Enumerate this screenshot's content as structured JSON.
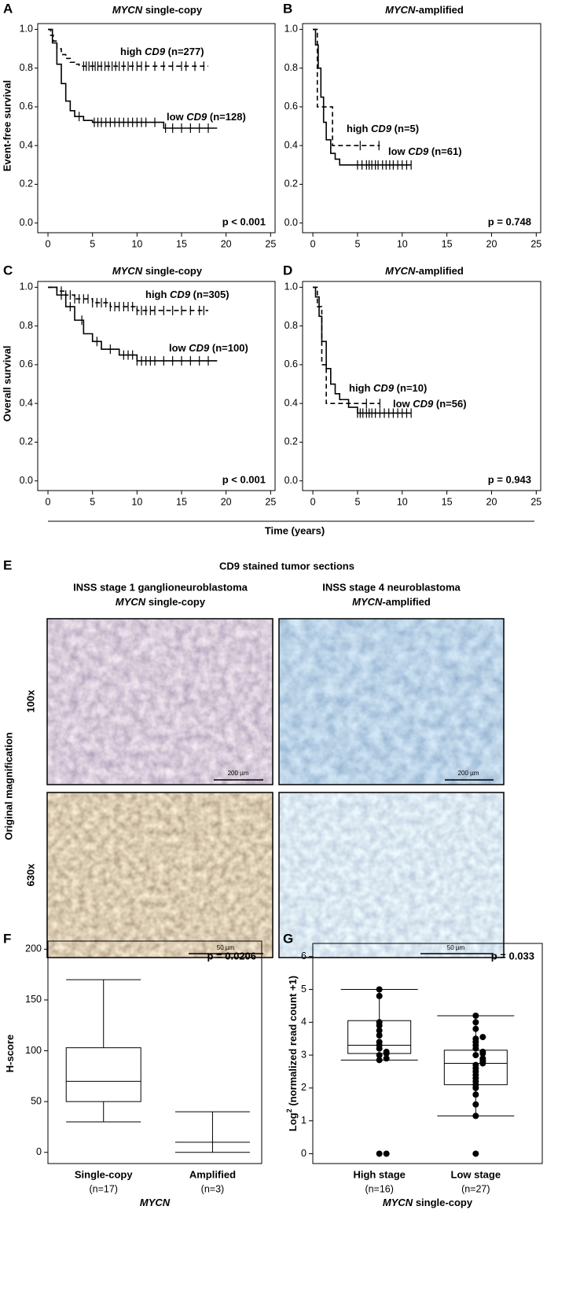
{
  "chart_data": [
    {
      "type": "km",
      "panel": "A",
      "title": [
        "MYCN",
        " single-copy"
      ],
      "ylabel": "Event-free survival",
      "p_text": "p < 0.001",
      "xlim": [
        -1.15,
        25.5
      ],
      "xticks": [
        0,
        5,
        10,
        15,
        20,
        25
      ],
      "ylim": [
        -0.05,
        1.03
      ],
      "yticks": [
        {
          "value": 0,
          "label": "0.0"
        },
        0.2,
        0.4,
        0.6,
        0.8,
        {
          "value": 1,
          "label": "1.0"
        }
      ],
      "series": [
        {
          "name": [
            "high ",
            "CD9",
            " (n=277)"
          ],
          "dashed": true,
          "x": [
            0,
            0.3,
            0.6,
            1,
            1.5,
            2,
            2.5,
            3,
            3.5,
            18
          ],
          "y": [
            1,
            0.97,
            0.94,
            0.9,
            0.87,
            0.85,
            0.83,
            0.82,
            0.81,
            0.81
          ],
          "censored": [
            4,
            4.3,
            4.6,
            5,
            5.3,
            5.6,
            6,
            6.4,
            6.8,
            7.2,
            7.6,
            8,
            8.5,
            9,
            9.5,
            10,
            10.5,
            11,
            12,
            13,
            14,
            15,
            15.5,
            16.5,
            17.5
          ]
        },
        {
          "name": [
            "low ",
            "CD9",
            " (n=128)"
          ],
          "dashed": false,
          "x": [
            0,
            0.5,
            1,
            1.5,
            2,
            2.5,
            3,
            4,
            5,
            13,
            19
          ],
          "y": [
            1,
            0.93,
            0.82,
            0.72,
            0.63,
            0.58,
            0.55,
            0.53,
            0.52,
            0.49,
            0.49
          ],
          "censored": [
            3.5,
            5.2,
            5.6,
            6,
            6.5,
            7,
            7.5,
            8,
            8.5,
            9,
            9.5,
            10,
            10.5,
            11,
            12,
            13.2,
            14,
            15,
            16,
            17,
            18
          ]
        }
      ]
    },
    {
      "type": "km",
      "panel": "B",
      "title": [
        "MYCN",
        "-amplified"
      ],
      "p_text": "p = 0.748",
      "xlim": [
        -1.15,
        25.5
      ],
      "xticks": [
        0,
        5,
        10,
        15,
        20,
        25
      ],
      "ylim": [
        -0.05,
        1.03
      ],
      "yticks": [
        {
          "value": 0,
          "label": "0.0"
        },
        0.2,
        0.4,
        0.6,
        0.8,
        {
          "value": 1,
          "label": "1.0"
        }
      ],
      "series": [
        {
          "name": [
            "high ",
            "CD9",
            " (n=5)"
          ],
          "dashed": true,
          "x": [
            0,
            0.5,
            2.2,
            7.5
          ],
          "y": [
            1,
            0.6,
            0.4,
            0.4
          ],
          "censored": [
            5.3,
            7.4
          ]
        },
        {
          "name": [
            "low ",
            "CD9",
            " (n=61)"
          ],
          "dashed": false,
          "x": [
            0,
            0.3,
            0.6,
            0.9,
            1.2,
            1.5,
            2,
            2.5,
            3,
            11
          ],
          "y": [
            1,
            0.92,
            0.8,
            0.65,
            0.52,
            0.43,
            0.36,
            0.33,
            0.3,
            0.3
          ],
          "censored": [
            5,
            5.5,
            6,
            6.3,
            6.6,
            7,
            7.3,
            7.8,
            8.2,
            8.6,
            9,
            9.5,
            10,
            10.5,
            11
          ]
        }
      ]
    },
    {
      "type": "km",
      "panel": "C",
      "title": [
        "MYCN",
        " single-copy"
      ],
      "ylabel": "Overall survival",
      "p_text": "p < 0.001",
      "xlim": [
        -1.15,
        25.5
      ],
      "xticks": [
        0,
        5,
        10,
        15,
        20,
        25
      ],
      "ylim": [
        -0.05,
        1.03
      ],
      "yticks": [
        {
          "value": 0,
          "label": "0.0"
        },
        0.2,
        0.4,
        0.6,
        0.8,
        {
          "value": 1,
          "label": "1.0"
        }
      ],
      "series": [
        {
          "name": [
            "high ",
            "CD9",
            " (n=305)"
          ],
          "dashed": true,
          "x": [
            0,
            1,
            2,
            3,
            5,
            7,
            10,
            18
          ],
          "y": [
            1,
            0.98,
            0.96,
            0.94,
            0.92,
            0.9,
            0.88,
            0.88
          ],
          "censored": [
            1.5,
            2,
            2.5,
            3,
            3.5,
            4,
            4.5,
            5,
            5.5,
            6,
            6.5,
            7,
            7.5,
            8,
            8.5,
            9,
            9.5,
            10,
            10.5,
            11,
            11.5,
            12,
            13,
            14,
            15,
            16,
            17,
            17.5
          ]
        },
        {
          "name": [
            "low ",
            "CD9",
            " (n=100)"
          ],
          "dashed": false,
          "x": [
            0,
            1,
            2,
            3,
            4,
            5,
            6,
            8,
            10,
            19
          ],
          "y": [
            1,
            0.96,
            0.9,
            0.83,
            0.76,
            0.72,
            0.68,
            0.65,
            0.62,
            0.62
          ],
          "censored": [
            1.5,
            2.5,
            3.8,
            5.5,
            7,
            8.5,
            9,
            9.5,
            10,
            10.5,
            11,
            11.5,
            12,
            13,
            14,
            15,
            16,
            17,
            18
          ]
        }
      ]
    },
    {
      "type": "km",
      "panel": "D",
      "title": [
        "MYCN",
        "-amplified"
      ],
      "p_text": "p = 0.943",
      "xlim": [
        -1.15,
        25.5
      ],
      "xticks": [
        0,
        5,
        10,
        15,
        20,
        25
      ],
      "ylim": [
        -0.05,
        1.03
      ],
      "yticks": [
        {
          "value": 0,
          "label": "0.0"
        },
        0.2,
        0.4,
        0.6,
        0.8,
        {
          "value": 1,
          "label": "1.0"
        }
      ],
      "series": [
        {
          "name": [
            "high ",
            "CD9",
            " (n=10)"
          ],
          "dashed": true,
          "x": [
            0,
            0.5,
            1,
            1.5,
            7.5
          ],
          "y": [
            1,
            0.9,
            0.6,
            0.4,
            0.4
          ],
          "censored": [
            6,
            7.5
          ]
        },
        {
          "name": [
            "low ",
            "CD9",
            " (n=56)"
          ],
          "dashed": false,
          "x": [
            0,
            0.3,
            0.7,
            1,
            1.5,
            2,
            2.5,
            3,
            4,
            5,
            11
          ],
          "y": [
            1,
            0.95,
            0.85,
            0.72,
            0.58,
            0.5,
            0.45,
            0.42,
            0.38,
            0.35,
            0.35
          ],
          "censored": [
            5,
            5.3,
            5.6,
            6,
            6.3,
            6.6,
            7,
            7.5,
            8,
            8.5,
            9,
            9.5,
            10,
            10.5,
            11
          ]
        }
      ]
    },
    {
      "type": "box",
      "panel": "F",
      "ylabel": [
        "H-score"
      ],
      "xlabel": [
        "MYCN"
      ],
      "p_text": "p = 0.0206",
      "ylim": [
        -11,
        208
      ],
      "yticks": [
        0,
        50,
        100,
        150,
        200
      ],
      "categories": [
        "Single-copy",
        "Amplified"
      ],
      "n_labels": [
        "(n=17)",
        "(n=3)"
      ],
      "boxes": [
        {
          "whisker_low": 30,
          "q1": 50,
          "median": 70,
          "q3": 103,
          "whisker_high": 170
        },
        {
          "whisker_low": 0,
          "q1": 10,
          "median": 10,
          "q3": 10,
          "whisker_high": 40
        }
      ]
    },
    {
      "type": "box",
      "panel": "G",
      "ylabel": [
        "Log",
        "2",
        " (normalized read count +1)"
      ],
      "xlabel": [
        "MYCN",
        " single-copy"
      ],
      "p_text": "p = 0.033",
      "ylim": [
        -0.3,
        6.4
      ],
      "yticks": [
        0,
        1,
        2,
        3,
        4,
        5,
        6
      ],
      "categories": [
        "High stage",
        "Low stage"
      ],
      "n_labels": [
        "(n=16)",
        "(n=27)"
      ],
      "boxes": [
        {
          "whisker_low": 2.85,
          "q1": 3.05,
          "median": 3.3,
          "q3": 4.05,
          "whisker_high": 5
        },
        {
          "whisker_low": 1.15,
          "q1": 2.1,
          "median": 2.75,
          "q3": 3.15,
          "whisker_high": 4.2
        }
      ],
      "points": [
        [
          0,
          0,
          2.85,
          2.9,
          3,
          3.05,
          3.1,
          3.2,
          3.3,
          3.4,
          3.6,
          3.75,
          3.9,
          4,
          4.8,
          5
        ],
        [
          0,
          1.15,
          1.5,
          1.8,
          2,
          2.1,
          2.2,
          2.3,
          2.4,
          2.5,
          2.6,
          2.7,
          2.75,
          2.8,
          2.85,
          2.9,
          3,
          3.05,
          3.1,
          3.2,
          3.3,
          3.4,
          3.5,
          3.55,
          3.8,
          4,
          4.2
        ]
      ]
    }
  ],
  "time_axis_label": "Time (years)",
  "panel_e": {
    "panel": "E",
    "title": "CD9 stained tumor sections",
    "columns": [
      {
        "line1": "INSS stage 1 ganglioneuroblastoma",
        "line2": [
          "MYCN",
          " single-copy"
        ]
      },
      {
        "line1": "INSS stage 4 neuroblastoma",
        "line2": [
          "MYCN",
          "-amplified"
        ]
      }
    ],
    "side_label": "Original magnification",
    "rows": [
      "100x",
      "630x"
    ],
    "scale_bars": [
      "200 µm",
      "200 µm",
      "50 µm",
      "50 µm"
    ]
  }
}
